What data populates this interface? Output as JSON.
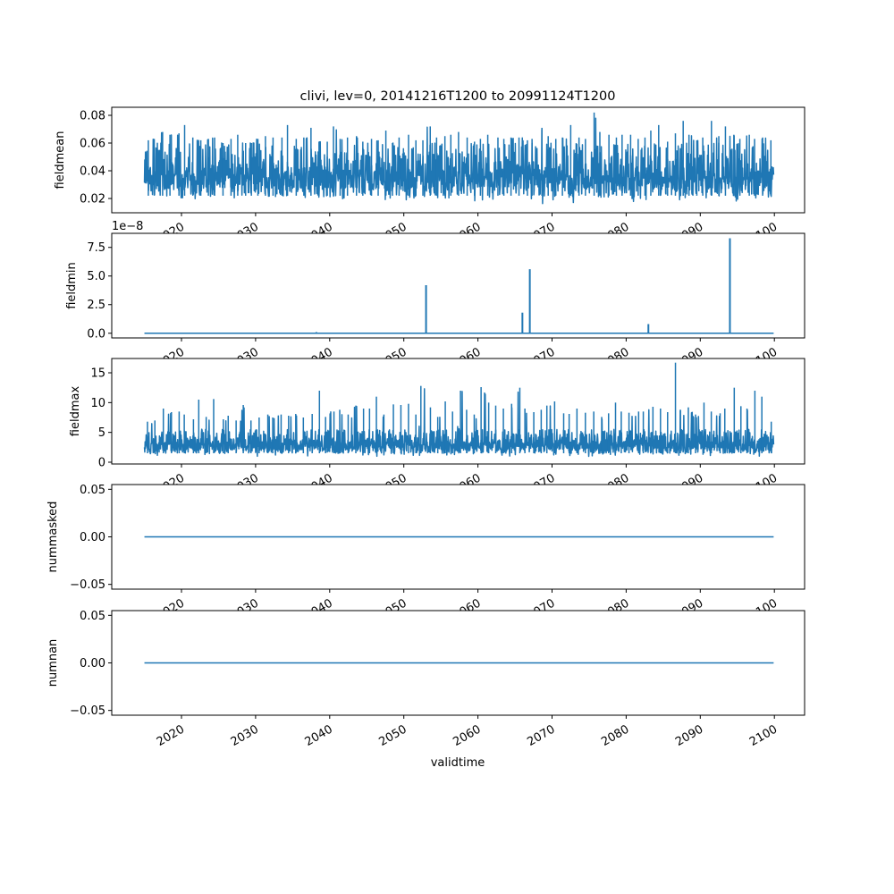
{
  "chart_data": {
    "type": "line",
    "title": "clivi, lev=0, 20141216T1200 to 20991124T1200",
    "xlabel": "validtime",
    "x_ticks": [
      "2020",
      "2030",
      "2040",
      "2050",
      "2060",
      "2070",
      "2080",
      "2090",
      "2100"
    ],
    "x_range_years": [
      2015.0,
      2099.9
    ],
    "line_color": "#1f77b4",
    "panels": [
      {
        "ylabel": "fieldmean",
        "ylim": [
          0.0097,
          0.0858
        ],
        "y_ticks": [
          "0.02",
          "0.04",
          "0.06",
          "0.08"
        ],
        "y_tick_values": [
          0.02,
          0.04,
          0.06,
          0.08
        ],
        "kind": "noisy",
        "typical_low": 0.022,
        "typical_high": 0.06,
        "yearly_high": [
          0.062,
          0.063,
          0.068,
          0.066,
          0.067,
          0.073,
          0.064,
          0.062,
          0.063,
          0.064,
          0.06,
          0.063,
          0.066,
          0.06,
          0.06,
          0.063,
          0.065,
          0.064,
          0.064,
          0.073,
          0.063,
          0.064,
          0.071,
          0.061,
          0.061,
          0.072,
          0.063,
          0.064,
          0.065,
          0.061,
          0.063,
          0.062,
          0.069,
          0.06,
          0.064,
          0.066,
          0.062,
          0.062,
          0.072,
          0.064,
          0.065,
          0.066,
          0.068,
          0.064,
          0.061,
          0.063,
          0.066,
          0.064,
          0.063,
          0.064,
          0.064,
          0.062,
          0.063,
          0.071,
          0.065,
          0.063,
          0.064,
          0.073,
          0.064,
          0.063,
          0.082,
          0.068,
          0.066,
          0.064,
          0.066,
          0.066,
          0.063,
          0.064,
          0.069,
          0.073,
          0.061,
          0.067,
          0.076,
          0.066,
          0.062,
          0.064,
          0.076,
          0.065,
          0.072,
          0.066,
          0.063,
          0.066,
          0.063,
          0.064,
          0.062
        ],
        "yearly_low": [
          0.022,
          0.023,
          0.021,
          0.019,
          0.02,
          0.02,
          0.019,
          0.02,
          0.021,
          0.018,
          0.019,
          0.02,
          0.017,
          0.018,
          0.02,
          0.02,
          0.019,
          0.019,
          0.02,
          0.018,
          0.019,
          0.017,
          0.02,
          0.017,
          0.018,
          0.02,
          0.019,
          0.018,
          0.019,
          0.017,
          0.016,
          0.018,
          0.017,
          0.02,
          0.018,
          0.019,
          0.019,
          0.017,
          0.018,
          0.018,
          0.016,
          0.02,
          0.018,
          0.019,
          0.018,
          0.017,
          0.018,
          0.015,
          0.017,
          0.018,
          0.02,
          0.018,
          0.018,
          0.016,
          0.019,
          0.017,
          0.016,
          0.017,
          0.018,
          0.014,
          0.019,
          0.017,
          0.02,
          0.016,
          0.018,
          0.017,
          0.02,
          0.018,
          0.015,
          0.016,
          0.018,
          0.019,
          0.017,
          0.02,
          0.018,
          0.016,
          0.02,
          0.019,
          0.018,
          0.017,
          0.018,
          0.019,
          0.018,
          0.019,
          0.02
        ]
      },
      {
        "ylabel": "fieldmin",
        "ylim": [
          -0.41,
          8.73
        ],
        "y_ticks": [
          "0.0",
          "2.5",
          "5.0",
          "7.5"
        ],
        "y_tick_values": [
          0,
          2.5,
          5,
          7.5
        ],
        "offset_text": "1e−8",
        "kind": "spikes",
        "baseline": 0,
        "spikes": [
          {
            "x": 2038.2,
            "y": 0.1
          },
          {
            "x": 2053.0,
            "y": 4.2
          },
          {
            "x": 2066.0,
            "y": 1.8
          },
          {
            "x": 2067.0,
            "y": 5.6
          },
          {
            "x": 2083.0,
            "y": 0.8
          },
          {
            "x": 2094.0,
            "y": 8.3
          }
        ]
      },
      {
        "ylabel": "fieldmax",
        "ylim": [
          -0.3,
          17.4
        ],
        "y_ticks": [
          "0",
          "5",
          "10",
          "15"
        ],
        "y_tick_values": [
          0,
          5,
          10,
          15
        ],
        "kind": "noisy",
        "typical_low": 1.5,
        "typical_high": 5.5,
        "yearly_high": [
          6.8,
          7,
          9,
          8.4,
          8.5,
          8,
          7.2,
          10.5,
          7.6,
          10.6,
          7.2,
          7.8,
          7,
          9.6,
          7,
          7.5,
          8,
          7.5,
          8,
          7.8,
          8.1,
          7.5,
          8.1,
          12,
          7.6,
          8.5,
          8.8,
          8,
          9.5,
          9,
          9,
          11,
          8,
          9.7,
          9.6,
          9.8,
          8,
          12.8,
          9.2,
          7.6,
          10.2,
          8.5,
          12,
          8.8,
          8,
          12.6,
          10,
          9.5,
          9,
          9.8,
          12.5,
          9,
          8.4,
          8.8,
          9.5,
          10.2,
          8.2,
          8.1,
          9,
          8.3,
          8.5,
          7.6,
          8.2,
          10,
          8.5,
          8.3,
          8.5,
          8.5,
          9.3,
          9,
          8.4,
          16.7,
          8.8,
          9.2,
          8,
          10,
          8.5,
          8.2,
          9,
          12.5,
          9.4,
          9,
          12,
          11,
          6.8
        ],
        "yearly_low": [
          1.2,
          1.1,
          1.0,
          1.1,
          1.0,
          1.2,
          0.9,
          1.0,
          1.1,
          0.9,
          1.0,
          1.1,
          0.9,
          1.0,
          1.1,
          1.0,
          1.2,
          0.9,
          1.0,
          1.0,
          1.1,
          0.9,
          1.0,
          1.0,
          0.9,
          1.0,
          1.1,
          1.0,
          0.9,
          1.0,
          1.1,
          0.9,
          1.0,
          1.0,
          0.9,
          1.1,
          1.0,
          0.9,
          1.0,
          1.0,
          1.1,
          0.8,
          1.0,
          0.9,
          1.0,
          1.1,
          0.9,
          1.0,
          0.9,
          1.0,
          1.1,
          0.9,
          0.8,
          1.0,
          0.9,
          1.0,
          1.0,
          0.9,
          1.0,
          0.8,
          0.9,
          1.0,
          1.1,
          0.9,
          1.0,
          0.9,
          1.0,
          0.9,
          0.8,
          1.0,
          0.7,
          0.9,
          1.0,
          0.9,
          1.0,
          0.8,
          0.9,
          1.0,
          0.9,
          1.0,
          0.9,
          1.0,
          0.9,
          1.0,
          1.2
        ]
      },
      {
        "ylabel": "nummasked",
        "ylim": [
          -0.055,
          0.055
        ],
        "y_ticks": [
          "−0.05",
          "0.00",
          "0.05"
        ],
        "y_tick_values": [
          -0.05,
          0,
          0.05
        ],
        "kind": "constant",
        "value": 0
      },
      {
        "ylabel": "numnan",
        "ylim": [
          -0.055,
          0.055
        ],
        "y_ticks": [
          "−0.05",
          "0.00",
          "0.05"
        ],
        "y_tick_values": [
          -0.05,
          0,
          0.05
        ],
        "kind": "constant",
        "value": 0
      }
    ]
  }
}
